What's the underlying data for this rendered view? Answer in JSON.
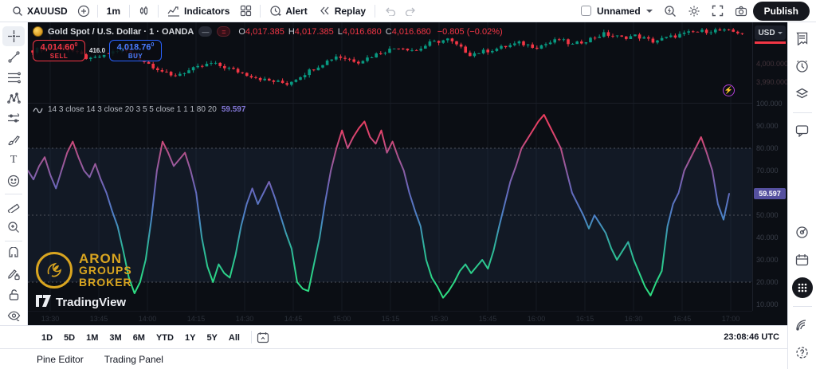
{
  "toolbar_top": {
    "symbol": "XAUUSD",
    "interval": "1m",
    "indicators_label": "Indicators",
    "alert_label": "Alert",
    "replay_label": "Replay",
    "layout_name": "Unnamed",
    "publish_label": "Publish"
  },
  "legend": {
    "title": "Gold Spot / U.S. Dollar · 1 · OANDA",
    "ohlc": [
      {
        "k": "O",
        "v": "4,017.385"
      },
      {
        "k": "H",
        "v": "4,017.385"
      },
      {
        "k": "L",
        "v": "4,016.680"
      },
      {
        "k": "C",
        "v": "4,016.680"
      }
    ],
    "change": "−0.805 (−0.02%)"
  },
  "trade_buttons": {
    "sell_price": "4,014.60",
    "sell_sup": "0",
    "sell_label": "SELL",
    "spread": "416.0",
    "buy_price": "4,018.76",
    "buy_sup": "0",
    "buy_label": "BUY"
  },
  "price_axis": {
    "currency": "USD",
    "labels": [
      {
        "text": "4,000.000",
        "price": 4000
      },
      {
        "text": "3,990.000",
        "price": 3990
      }
    ]
  },
  "indicator": {
    "legend": "14 3 close 14 3 close 20 3 5 5 close 1 1 1 80 20",
    "value_label": "59.597",
    "axis": [
      100,
      90,
      80,
      70,
      60,
      50,
      40,
      30,
      20,
      10
    ]
  },
  "chart_data": [
    {
      "type": "candlestick",
      "title": "Gold Spot / U.S. Dollar, 1 minute, OANDA",
      "ohlc_last": {
        "open": 4017.385,
        "high": 4017.385,
        "low": 4016.68,
        "close": 4016.68
      },
      "count": 160,
      "waypoints": [
        [
          0,
          4007
        ],
        [
          6,
          4010
        ],
        [
          13,
          4002
        ],
        [
          20,
          4008
        ],
        [
          31,
          3993
        ],
        [
          40,
          4000
        ],
        [
          43,
          3998
        ],
        [
          48,
          3994
        ],
        [
          52,
          3991
        ],
        [
          57,
          3989
        ],
        [
          62,
          3996
        ],
        [
          68,
          4004
        ],
        [
          73,
          4001
        ],
        [
          78,
          4006
        ],
        [
          82,
          4009
        ],
        [
          86,
          4007
        ],
        [
          89,
          4011
        ],
        [
          93,
          4013
        ],
        [
          98,
          4005
        ],
        [
          104,
          4008
        ],
        [
          109,
          4011
        ],
        [
          113,
          4009
        ],
        [
          118,
          4013
        ],
        [
          121,
          4010
        ],
        [
          128,
          4016
        ],
        [
          132,
          4014
        ],
        [
          135,
          4015
        ],
        [
          139,
          4012
        ],
        [
          144,
          4015
        ],
        [
          148,
          4017
        ],
        [
          153,
          4018
        ],
        [
          156,
          4017.4
        ],
        [
          159,
          4016.7
        ]
      ],
      "up_color": "#089981",
      "down_color": "#f23645"
    },
    {
      "type": "line",
      "title": "Oscillator (gradient)",
      "ylim": [
        0,
        100
      ],
      "bands": [
        80,
        50,
        20
      ],
      "last": 59.597,
      "values": [
        70,
        66,
        72,
        76,
        68,
        62,
        70,
        78,
        83,
        76,
        70,
        67,
        73,
        66,
        60,
        52,
        45,
        34,
        22,
        15,
        20,
        30,
        48,
        70,
        83,
        78,
        72,
        75,
        78,
        70,
        60,
        40,
        27,
        20,
        28,
        24,
        22,
        32,
        45,
        55,
        62,
        55,
        60,
        65,
        58,
        50,
        42,
        35,
        20,
        17,
        16,
        28,
        40,
        56,
        70,
        80,
        88,
        80,
        85,
        89,
        92,
        85,
        82,
        88,
        78,
        83,
        76,
        70,
        60,
        52,
        45,
        30,
        22,
        18,
        13,
        16,
        20,
        25,
        28,
        24,
        27,
        30,
        26,
        34,
        45,
        55,
        65,
        72,
        80,
        84,
        88,
        92,
        95,
        90,
        85,
        80,
        70,
        60,
        55,
        50,
        44,
        50,
        46,
        42,
        35,
        30,
        34,
        38,
        30,
        24,
        18,
        14,
        20,
        25,
        45,
        55,
        60,
        70,
        75,
        80,
        85,
        78,
        70,
        55,
        48,
        59.6
      ],
      "gradient": [
        "#f23a55",
        "#e0426a",
        "#a05898",
        "#6668bd",
        "#4b83c6",
        "#2fb49c",
        "#2bd487",
        "#2fe07d"
      ]
    }
  ],
  "time_axis": [
    "13:30",
    "13:45",
    "14:00",
    "14:15",
    "14:30",
    "14:45",
    "15:00",
    "15:15",
    "15:30",
    "15:45",
    "16:00",
    "16:15",
    "16:30",
    "16:45",
    "17:00"
  ],
  "toolbar_bottom": {
    "ranges": [
      "1D",
      "5D",
      "1M",
      "3M",
      "6M",
      "YTD",
      "1Y",
      "5Y",
      "All"
    ],
    "clock": "23:08:46 UTC"
  },
  "status_bar": {
    "tabs": [
      "Pine Editor",
      "Trading Panel"
    ]
  },
  "watermark": {
    "line1": "ARON",
    "line2": "GROUPS",
    "line3": "BROKER",
    "tv": "TradingView"
  },
  "colors": {
    "up": "#089981",
    "down": "#f23645",
    "buy_blue": "#2962ff",
    "value_chip": "#55509f",
    "accent_red": "#f23645"
  }
}
